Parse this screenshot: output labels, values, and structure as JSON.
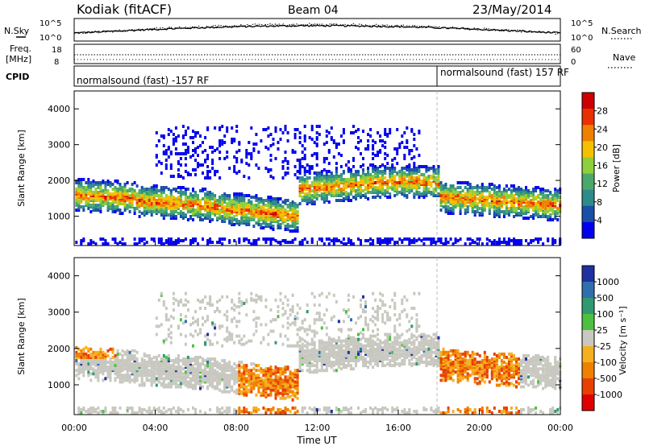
{
  "header": {
    "station": "Kodiak (fitACF)",
    "beam": "Beam 04",
    "date": "23/May/2014"
  },
  "panels": {
    "nsky_label": "N.Sky",
    "nsearch_label": "N.Search",
    "noise_ticks": [
      "10^5",
      "10^0"
    ],
    "freq_label_1": "Freq.",
    "freq_label_2": "[MHz]",
    "freq_ticks": [
      "18",
      "8"
    ],
    "nave_label": "Nave",
    "nave_ticks": [
      "60",
      "0"
    ],
    "cpid_label": "CPID",
    "cpid_1": "normalsound (fast) -157 RF",
    "cpid_2": "normalsound (fast) 157 RF"
  },
  "chart_data": [
    {
      "type": "heatmap",
      "name": "power",
      "ylabel": "Slant Range [km]",
      "ylim": [
        180,
        4500
      ],
      "yticks": [
        "1000",
        "2000",
        "3000",
        "4000"
      ],
      "xlim": [
        "00:00",
        "24:00"
      ],
      "colorbar_label": "Power [dB]",
      "colorbar_ticks": [
        "4",
        "8",
        "12",
        "16",
        "20",
        "24",
        "28"
      ],
      "colorbar_colors": [
        "#0000ee",
        "#1a4fa8",
        "#2f8a8a",
        "#4aa86a",
        "#8fcf3a",
        "#f5c000",
        "#f08000",
        "#e83000",
        "#cc0000"
      ]
    },
    {
      "type": "heatmap",
      "name": "velocity",
      "ylabel": "Slant Range [km]",
      "ylim": [
        180,
        4500
      ],
      "yticks": [
        "1000",
        "2000",
        "3000",
        "4000"
      ],
      "xlim": [
        "00:00",
        "24:00"
      ],
      "xlabel": "Time UT",
      "xticks": [
        "00:00",
        "04:00",
        "08:00",
        "12:00",
        "16:00",
        "20:00",
        "00:00"
      ],
      "colorbar_label": "Velocity [m s⁻¹]",
      "colorbar_ticks": [
        "1000",
        "500",
        "100",
        "25",
        "-25",
        "-100",
        "-500",
        "-1000"
      ],
      "colorbar_colors": [
        "#2030a0",
        "#2f6fb0",
        "#2f9a70",
        "#4cc040",
        "#c8c8c0",
        "#f5b020",
        "#f08000",
        "#e84000",
        "#e00000"
      ]
    }
  ]
}
